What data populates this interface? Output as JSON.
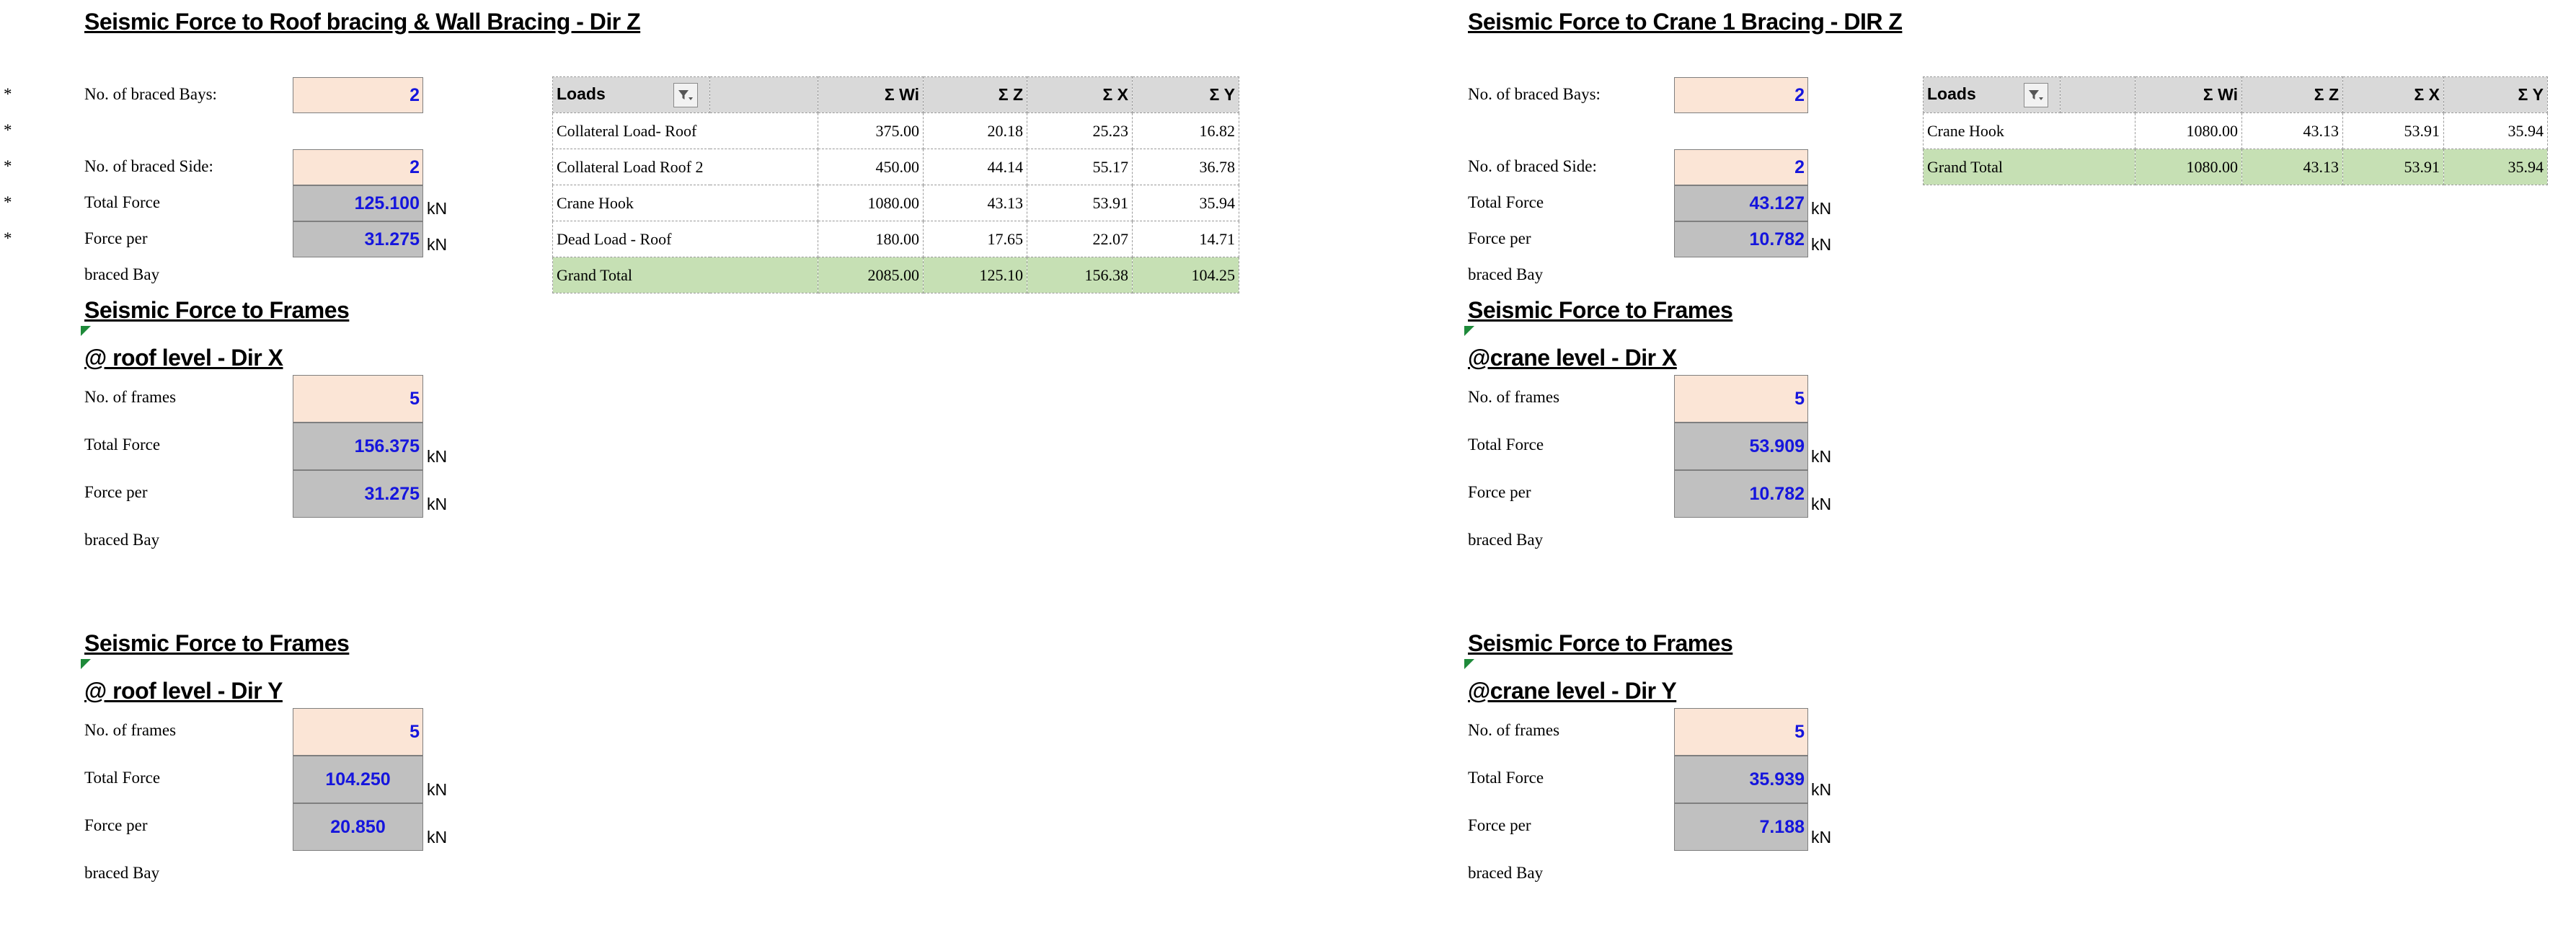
{
  "left": {
    "title_z": "Seismic Force to  Roof bracing & Wall Bracing - Dir Z",
    "stars": [
      "*",
      "*",
      "*",
      "*",
      "*"
    ],
    "bays_label": "No. of braced Bays:",
    "bays_value": "2",
    "sides_label": "No. of braced Side:",
    "sides_value": "2",
    "total_label": "Total Force",
    "total_value": "125.100",
    "per_label": "Force per",
    "per_value": "31.275",
    "per_label2": "braced Bay",
    "unit": "kN",
    "table": {
      "headers": [
        "Loads",
        "Σ Wi",
        "Σ Z",
        "Σ X",
        "Σ Y"
      ],
      "rows": [
        [
          "Collateral Load- Roof",
          "375.00",
          "20.18",
          "25.23",
          "16.82"
        ],
        [
          "Collateral Load Roof 2",
          "450.00",
          "44.14",
          "55.17",
          "36.78"
        ],
        [
          "Crane Hook",
          "1080.00",
          "43.13",
          "53.91",
          "35.94"
        ],
        [
          "Dead Load - Roof",
          "180.00",
          "17.65",
          "22.07",
          "14.71"
        ]
      ],
      "total": [
        "Grand Total",
        "2085.00",
        "125.10",
        "156.38",
        "104.25"
      ]
    },
    "frames_x": {
      "title1": "Seismic Force to  Frames",
      "title2": "@ roof level - Dir X",
      "frames_label": "No. of frames",
      "frames_value": "5",
      "total_label": "Total Force",
      "total_value": "156.375",
      "per_label": "Force per",
      "per_value": "31.275",
      "per_label2": "braced Bay",
      "unit": "kN"
    },
    "frames_y": {
      "title1": "Seismic Force to  Frames",
      "title2": "@ roof level - Dir Y",
      "frames_label": "No. of frames",
      "frames_value": "5",
      "total_label": "Total Force",
      "total_value": "104.250",
      "per_label": "Force per",
      "per_value": "20.850",
      "per_label2": "braced Bay",
      "unit": "kN"
    }
  },
  "right": {
    "title_z": "Seismic Force to Crane 1 Bracing - DIR Z",
    "bays_label": "No. of braced Bays:",
    "bays_value": "2",
    "sides_label": "No. of braced Side:",
    "sides_value": "2",
    "total_label": "Total Force",
    "total_value": "43.127",
    "per_label": "Force per",
    "per_value": "10.782",
    "per_label2": "braced Bay",
    "unit": "kN",
    "table": {
      "headers": [
        "Loads",
        "Σ Wi",
        "Σ Z",
        "Σ X",
        "Σ Y"
      ],
      "rows": [
        [
          "Crane Hook",
          "1080.00",
          "43.13",
          "53.91",
          "35.94"
        ]
      ],
      "total": [
        "Grand Total",
        "1080.00",
        "43.13",
        "53.91",
        "35.94"
      ]
    },
    "frames_x": {
      "title1": "Seismic Force to  Frames",
      "title2": "@crane level - Dir X",
      "frames_label": "No. of frames",
      "frames_value": "5",
      "total_label": "Total Force",
      "total_value": "53.909",
      "per_label": "Force per",
      "per_value": "10.782",
      "per_label2": "braced Bay",
      "unit": "kN"
    },
    "frames_y": {
      "title1": "Seismic Force to  Frames",
      "title2": "@crane level - Dir Y",
      "frames_label": "No. of frames",
      "frames_value": "5",
      "total_label": "Total Force",
      "total_value": "35.939",
      "per_label": "Force per",
      "per_value": "7.188",
      "per_label2": "braced Bay",
      "unit": "kN"
    }
  },
  "colors": {
    "input_fill": "#fbe5d6",
    "calc_fill": "#c0c0c0",
    "value_text": "#1515dd",
    "total_row": "#c6e0b4",
    "header_fill": "#d9d9d9"
  }
}
